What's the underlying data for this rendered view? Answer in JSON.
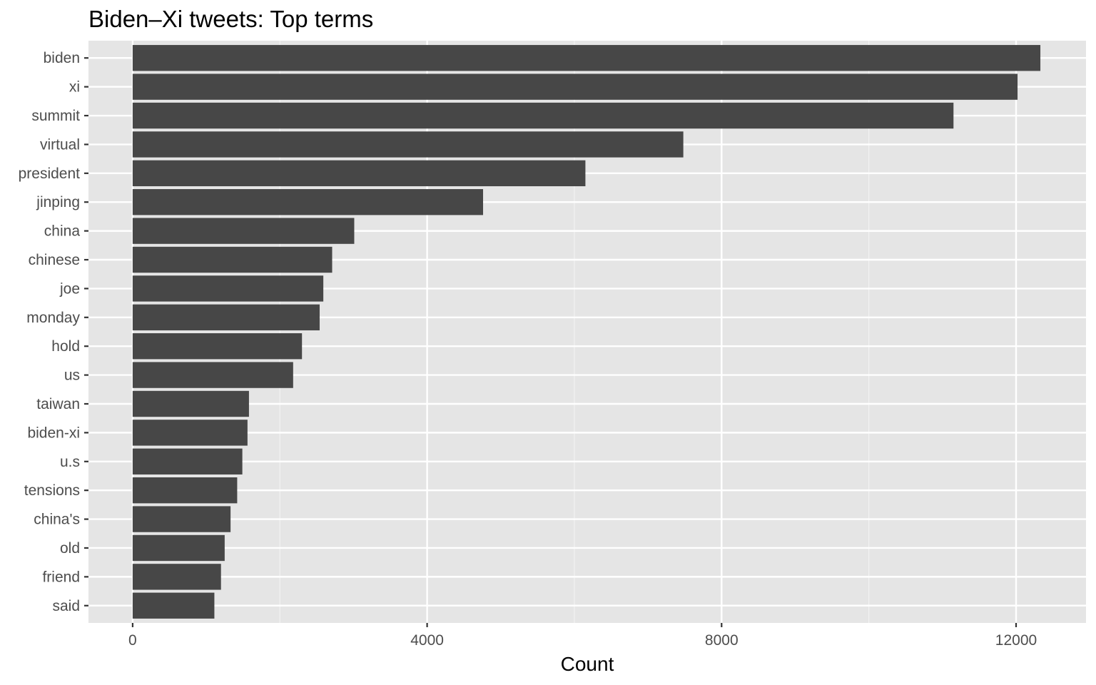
{
  "chart_data": {
    "type": "bar",
    "orientation": "horizontal",
    "title": "Biden–Xi tweets: Top terms",
    "xlabel": "Count",
    "ylabel": "",
    "categories": [
      "biden",
      "xi",
      "summit",
      "virtual",
      "president",
      "jinping",
      "china",
      "chinese",
      "joe",
      "monday",
      "hold",
      "us",
      "taiwan",
      "biden-xi",
      "u.s",
      "tensions",
      "china's",
      "old",
      "friend",
      "said"
    ],
    "values": [
      12330,
      12020,
      11150,
      7480,
      6150,
      4760,
      3010,
      2710,
      2590,
      2540,
      2300,
      2180,
      1580,
      1560,
      1490,
      1420,
      1330,
      1250,
      1200,
      1110
    ],
    "xlim": [
      -600,
      12950
    ],
    "xticks": [
      0,
      4000,
      8000,
      12000
    ],
    "xtick_labels": [
      "0",
      "4000",
      "8000",
      "12000"
    ],
    "grid": true,
    "legend": "none",
    "colors": {
      "bar": "#474747",
      "panel_background": "#e5e5e5",
      "grid_major": "#ffffff",
      "grid_minor": "#f2f2f2",
      "tick_text": "#4d4d4d",
      "axis_title": "#000000"
    }
  }
}
